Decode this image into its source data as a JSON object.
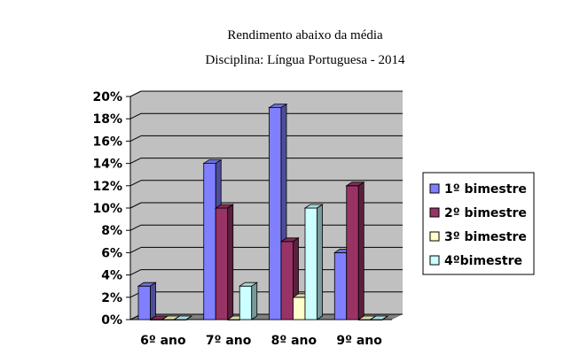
{
  "chart_data": {
    "type": "bar",
    "title": "Rendimento abaixo da média",
    "subtitle": "Disciplina: Língua Portuguesa - 2014",
    "categories": [
      "6º ano",
      "7º ano",
      "8º ano",
      "9º ano"
    ],
    "series": [
      {
        "name": "1º bimestre",
        "color": "#8080ff",
        "values": [
          3,
          14,
          19,
          6
        ]
      },
      {
        "name": "2º bimestre",
        "color": "#993366",
        "values": [
          0,
          10,
          7,
          12
        ]
      },
      {
        "name": "3º bimestre",
        "color": "#ffffcc",
        "values": [
          0,
          0,
          2,
          0
        ]
      },
      {
        "name": "4ºbimestre",
        "color": "#ccffff",
        "values": [
          0,
          3,
          10,
          0
        ]
      }
    ],
    "ylim": [
      0,
      20
    ],
    "ytick_step": 2,
    "ytick_format": "percent",
    "grid": true,
    "legend_position": "right",
    "plot_background": "#c0c0c0"
  }
}
